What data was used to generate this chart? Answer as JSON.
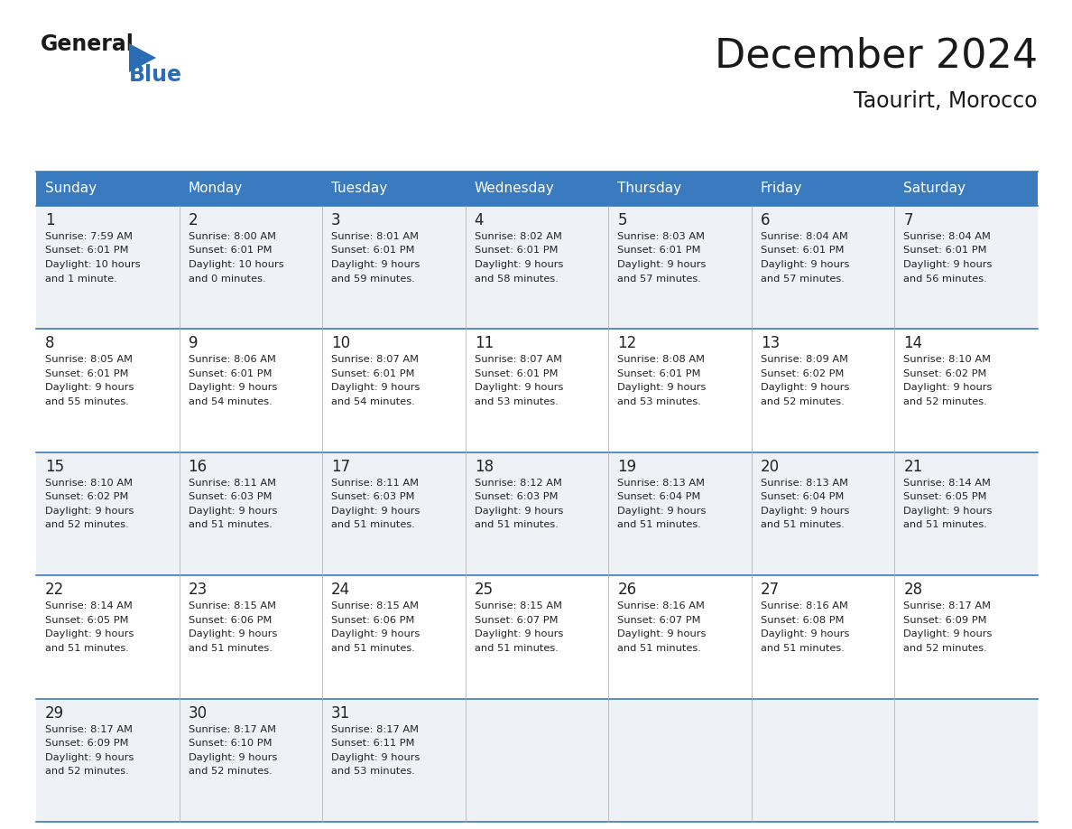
{
  "title": "December 2024",
  "subtitle": "Taourirt, Morocco",
  "header_bg": "#3a7abf",
  "header_text_color": "#ffffff",
  "day_names": [
    "Sunday",
    "Monday",
    "Tuesday",
    "Wednesday",
    "Thursday",
    "Friday",
    "Saturday"
  ],
  "row_bg_odd": "#eef2f7",
  "row_bg_even": "#ffffff",
  "cell_border_color": "#3a7abf",
  "text_color": "#222222",
  "days": [
    {
      "day": 1,
      "col": 0,
      "row": 0,
      "sunrise": "7:59 AM",
      "sunset": "6:01 PM",
      "daylight": "10 hours",
      "daylight2": "and 1 minute."
    },
    {
      "day": 2,
      "col": 1,
      "row": 0,
      "sunrise": "8:00 AM",
      "sunset": "6:01 PM",
      "daylight": "10 hours",
      "daylight2": "and 0 minutes."
    },
    {
      "day": 3,
      "col": 2,
      "row": 0,
      "sunrise": "8:01 AM",
      "sunset": "6:01 PM",
      "daylight": "9 hours",
      "daylight2": "and 59 minutes."
    },
    {
      "day": 4,
      "col": 3,
      "row": 0,
      "sunrise": "8:02 AM",
      "sunset": "6:01 PM",
      "daylight": "9 hours",
      "daylight2": "and 58 minutes."
    },
    {
      "day": 5,
      "col": 4,
      "row": 0,
      "sunrise": "8:03 AM",
      "sunset": "6:01 PM",
      "daylight": "9 hours",
      "daylight2": "and 57 minutes."
    },
    {
      "day": 6,
      "col": 5,
      "row": 0,
      "sunrise": "8:04 AM",
      "sunset": "6:01 PM",
      "daylight": "9 hours",
      "daylight2": "and 57 minutes."
    },
    {
      "day": 7,
      "col": 6,
      "row": 0,
      "sunrise": "8:04 AM",
      "sunset": "6:01 PM",
      "daylight": "9 hours",
      "daylight2": "and 56 minutes."
    },
    {
      "day": 8,
      "col": 0,
      "row": 1,
      "sunrise": "8:05 AM",
      "sunset": "6:01 PM",
      "daylight": "9 hours",
      "daylight2": "and 55 minutes."
    },
    {
      "day": 9,
      "col": 1,
      "row": 1,
      "sunrise": "8:06 AM",
      "sunset": "6:01 PM",
      "daylight": "9 hours",
      "daylight2": "and 54 minutes."
    },
    {
      "day": 10,
      "col": 2,
      "row": 1,
      "sunrise": "8:07 AM",
      "sunset": "6:01 PM",
      "daylight": "9 hours",
      "daylight2": "and 54 minutes."
    },
    {
      "day": 11,
      "col": 3,
      "row": 1,
      "sunrise": "8:07 AM",
      "sunset": "6:01 PM",
      "daylight": "9 hours",
      "daylight2": "and 53 minutes."
    },
    {
      "day": 12,
      "col": 4,
      "row": 1,
      "sunrise": "8:08 AM",
      "sunset": "6:01 PM",
      "daylight": "9 hours",
      "daylight2": "and 53 minutes."
    },
    {
      "day": 13,
      "col": 5,
      "row": 1,
      "sunrise": "8:09 AM",
      "sunset": "6:02 PM",
      "daylight": "9 hours",
      "daylight2": "and 52 minutes."
    },
    {
      "day": 14,
      "col": 6,
      "row": 1,
      "sunrise": "8:10 AM",
      "sunset": "6:02 PM",
      "daylight": "9 hours",
      "daylight2": "and 52 minutes."
    },
    {
      "day": 15,
      "col": 0,
      "row": 2,
      "sunrise": "8:10 AM",
      "sunset": "6:02 PM",
      "daylight": "9 hours",
      "daylight2": "and 52 minutes."
    },
    {
      "day": 16,
      "col": 1,
      "row": 2,
      "sunrise": "8:11 AM",
      "sunset": "6:03 PM",
      "daylight": "9 hours",
      "daylight2": "and 51 minutes."
    },
    {
      "day": 17,
      "col": 2,
      "row": 2,
      "sunrise": "8:11 AM",
      "sunset": "6:03 PM",
      "daylight": "9 hours",
      "daylight2": "and 51 minutes."
    },
    {
      "day": 18,
      "col": 3,
      "row": 2,
      "sunrise": "8:12 AM",
      "sunset": "6:03 PM",
      "daylight": "9 hours",
      "daylight2": "and 51 minutes."
    },
    {
      "day": 19,
      "col": 4,
      "row": 2,
      "sunrise": "8:13 AM",
      "sunset": "6:04 PM",
      "daylight": "9 hours",
      "daylight2": "and 51 minutes."
    },
    {
      "day": 20,
      "col": 5,
      "row": 2,
      "sunrise": "8:13 AM",
      "sunset": "6:04 PM",
      "daylight": "9 hours",
      "daylight2": "and 51 minutes."
    },
    {
      "day": 21,
      "col": 6,
      "row": 2,
      "sunrise": "8:14 AM",
      "sunset": "6:05 PM",
      "daylight": "9 hours",
      "daylight2": "and 51 minutes."
    },
    {
      "day": 22,
      "col": 0,
      "row": 3,
      "sunrise": "8:14 AM",
      "sunset": "6:05 PM",
      "daylight": "9 hours",
      "daylight2": "and 51 minutes."
    },
    {
      "day": 23,
      "col": 1,
      "row": 3,
      "sunrise": "8:15 AM",
      "sunset": "6:06 PM",
      "daylight": "9 hours",
      "daylight2": "and 51 minutes."
    },
    {
      "day": 24,
      "col": 2,
      "row": 3,
      "sunrise": "8:15 AM",
      "sunset": "6:06 PM",
      "daylight": "9 hours",
      "daylight2": "and 51 minutes."
    },
    {
      "day": 25,
      "col": 3,
      "row": 3,
      "sunrise": "8:15 AM",
      "sunset": "6:07 PM",
      "daylight": "9 hours",
      "daylight2": "and 51 minutes."
    },
    {
      "day": 26,
      "col": 4,
      "row": 3,
      "sunrise": "8:16 AM",
      "sunset": "6:07 PM",
      "daylight": "9 hours",
      "daylight2": "and 51 minutes."
    },
    {
      "day": 27,
      "col": 5,
      "row": 3,
      "sunrise": "8:16 AM",
      "sunset": "6:08 PM",
      "daylight": "9 hours",
      "daylight2": "and 51 minutes."
    },
    {
      "day": 28,
      "col": 6,
      "row": 3,
      "sunrise": "8:17 AM",
      "sunset": "6:09 PM",
      "daylight": "9 hours",
      "daylight2": "and 52 minutes."
    },
    {
      "day": 29,
      "col": 0,
      "row": 4,
      "sunrise": "8:17 AM",
      "sunset": "6:09 PM",
      "daylight": "9 hours",
      "daylight2": "and 52 minutes."
    },
    {
      "day": 30,
      "col": 1,
      "row": 4,
      "sunrise": "8:17 AM",
      "sunset": "6:10 PM",
      "daylight": "9 hours",
      "daylight2": "and 52 minutes."
    },
    {
      "day": 31,
      "col": 2,
      "row": 4,
      "sunrise": "8:17 AM",
      "sunset": "6:11 PM",
      "daylight": "9 hours",
      "daylight2": "and 53 minutes."
    }
  ],
  "logo_general_color": "#1a1a1a",
  "logo_blue_color": "#2a6db5",
  "logo_triangle_color": "#2a6db5",
  "title_color": "#1a1a1a",
  "subtitle_color": "#1a1a1a"
}
